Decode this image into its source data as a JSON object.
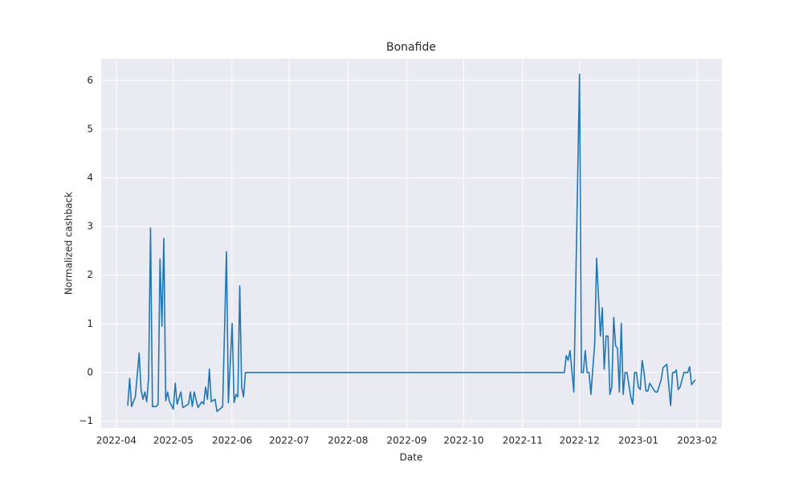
{
  "chart_data": {
    "type": "line",
    "title": "Bonafide",
    "x_label": "Date",
    "y_label": "Normalized cashback",
    "x": [
      "2022-04-07",
      "2022-04-08",
      "2022-04-09",
      "2022-04-11",
      "2022-04-13",
      "2022-04-14",
      "2022-04-15",
      "2022-04-16",
      "2022-04-17",
      "2022-04-18",
      "2022-04-19",
      "2022-04-20",
      "2022-04-22",
      "2022-04-23",
      "2022-04-24",
      "2022-04-25",
      "2022-04-26",
      "2022-04-27",
      "2022-04-28",
      "2022-04-29",
      "2022-05-01",
      "2022-05-02",
      "2022-05-03",
      "2022-05-05",
      "2022-05-06",
      "2022-05-09",
      "2022-05-10",
      "2022-05-11",
      "2022-05-12",
      "2022-05-14",
      "2022-05-16",
      "2022-05-17",
      "2022-05-18",
      "2022-05-19",
      "2022-05-20",
      "2022-05-21",
      "2022-05-23",
      "2022-05-24",
      "2022-05-27",
      "2022-05-29",
      "2022-05-30",
      "2022-06-01",
      "2022-06-02",
      "2022-06-03",
      "2022-06-04",
      "2022-06-05",
      "2022-06-06",
      "2022-06-07",
      "2022-06-08",
      "2022-11-22",
      "2022-11-23",
      "2022-11-24",
      "2022-11-25",
      "2022-11-26",
      "2022-11-28",
      "2022-12-01",
      "2022-12-02",
      "2022-12-03",
      "2022-12-04",
      "2022-12-05",
      "2022-12-06",
      "2022-12-07",
      "2022-12-09",
      "2022-12-10",
      "2022-12-12",
      "2022-12-13",
      "2022-12-14",
      "2022-12-15",
      "2022-12-16",
      "2022-12-17",
      "2022-12-18",
      "2022-12-19",
      "2022-12-20",
      "2022-12-21",
      "2022-12-22",
      "2022-12-23",
      "2022-12-24",
      "2022-12-25",
      "2022-12-26",
      "2022-12-28",
      "2022-12-29",
      "2022-12-30",
      "2022-12-31",
      "2023-01-01",
      "2023-01-02",
      "2023-01-03",
      "2023-01-04",
      "2023-01-05",
      "2023-01-06",
      "2023-01-07",
      "2023-01-09",
      "2023-01-10",
      "2023-01-11",
      "2023-01-13",
      "2023-01-14",
      "2023-01-16",
      "2023-01-18",
      "2023-01-19",
      "2023-01-20",
      "2023-01-21",
      "2023-01-22",
      "2023-01-23",
      "2023-01-25",
      "2023-01-27",
      "2023-01-28",
      "2023-01-29",
      "2023-01-31"
    ],
    "values": [
      -0.68,
      -0.12,
      -0.7,
      -0.5,
      0.4,
      -0.35,
      -0.55,
      -0.4,
      -0.6,
      -0.1,
      2.97,
      -0.7,
      -0.7,
      -0.65,
      2.33,
      0.95,
      2.76,
      -0.58,
      -0.4,
      -0.6,
      -0.75,
      -0.22,
      -0.65,
      -0.4,
      -0.72,
      -0.65,
      -0.4,
      -0.7,
      -0.4,
      -0.72,
      -0.6,
      -0.65,
      -0.3,
      -0.55,
      0.07,
      -0.6,
      -0.55,
      -0.8,
      -0.7,
      2.48,
      -0.62,
      1.01,
      -0.62,
      -0.45,
      -0.5,
      1.78,
      -0.3,
      -0.5,
      0,
      0,
      0,
      0.35,
      0.25,
      0.45,
      -0.4,
      6.13,
      0,
      0,
      0.45,
      0,
      0,
      -0.45,
      0.6,
      2.35,
      0.75,
      1.33,
      0.07,
      0.75,
      0.75,
      -0.45,
      -0.3,
      1.13,
      0.55,
      0.5,
      -0.4,
      1.01,
      -0.45,
      0,
      0,
      -0.5,
      -0.65,
      0,
      0,
      -0.3,
      -0.35,
      0.25,
      0,
      -0.38,
      -0.38,
      -0.22,
      -0.35,
      -0.4,
      -0.4,
      -0.15,
      0.1,
      0.17,
      -0.68,
      0,
      0,
      0.05,
      -0.35,
      -0.3,
      0,
      0,
      0.12,
      -0.25,
      -0.15
    ],
    "color": "#1f77b4",
    "xlim": [
      "2022-03-24",
      "2023-02-14"
    ],
    "xticks": [
      {
        "value": "2022-04-01",
        "label": "2022-04"
      },
      {
        "value": "2022-05-01",
        "label": "2022-05"
      },
      {
        "value": "2022-06-01",
        "label": "2022-06"
      },
      {
        "value": "2022-07-01",
        "label": "2022-07"
      },
      {
        "value": "2022-08-01",
        "label": "2022-08"
      },
      {
        "value": "2022-09-01",
        "label": "2022-09"
      },
      {
        "value": "2022-10-01",
        "label": "2022-10"
      },
      {
        "value": "2022-11-01",
        "label": "2022-11"
      },
      {
        "value": "2022-12-01",
        "label": "2022-12"
      },
      {
        "value": "2023-01-01",
        "label": "2023-01"
      },
      {
        "value": "2023-02-01",
        "label": "2023-02"
      }
    ],
    "ylim": [
      -1.14,
      6.45
    ],
    "yticks": [
      {
        "value": -1,
        "label": "−1"
      },
      0,
      1,
      2,
      3,
      4,
      5,
      6
    ],
    "grid": true
  }
}
